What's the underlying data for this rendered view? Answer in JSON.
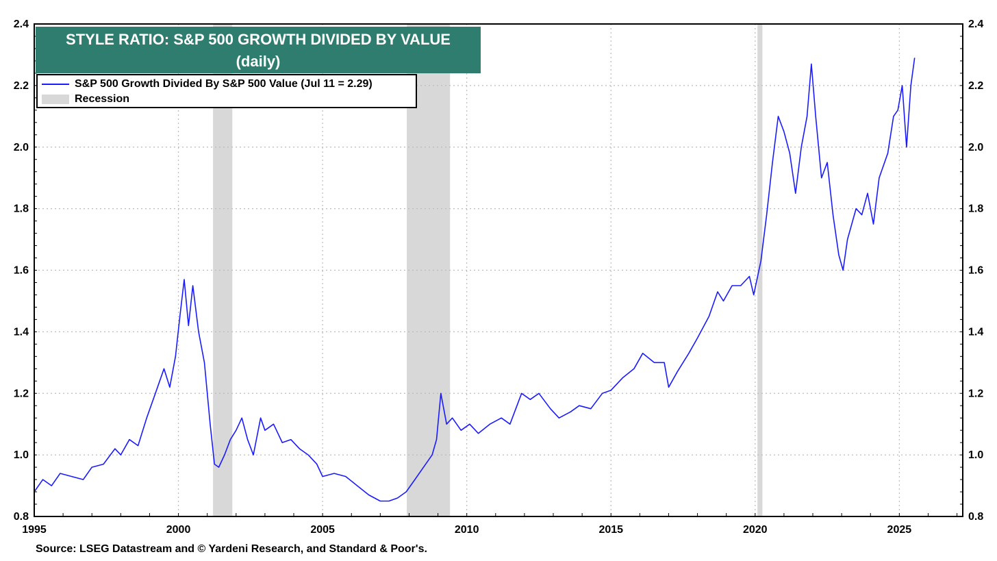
{
  "chart_data": {
    "type": "line",
    "title": "STYLE RATIO: S&P 500 GROWTH DIVIDED BY VALUE",
    "subtitle": "(daily)",
    "xlim": [
      1995,
      2027.2
    ],
    "ylim": [
      0.8,
      2.4
    ],
    "x_ticks": [
      "1995",
      "2000",
      "2005",
      "2010",
      "2015",
      "2020",
      "2025"
    ],
    "y_ticks": [
      "0.8",
      "1.0",
      "1.2",
      "1.4",
      "1.6",
      "1.8",
      "2.0",
      "2.2",
      "2.4"
    ],
    "grid": true,
    "legend_position": "top-left",
    "legend": {
      "series_label": "S&P 500 Growth Divided By S&P 500 Value (Jul 11 = 2.29)",
      "recession_label": "Recession"
    },
    "recessions": [
      [
        2001.2,
        2001.87
      ],
      [
        2007.92,
        2009.42
      ],
      [
        2020.08,
        2020.25
      ]
    ],
    "series": [
      {
        "name": "S&P 500 Growth Divided By S&P 500 Value (Jul 11 = 2.29)",
        "color": "#1a1aff",
        "points": [
          [
            1995.0,
            0.88
          ],
          [
            1995.3,
            0.92
          ],
          [
            1995.6,
            0.9
          ],
          [
            1995.9,
            0.94
          ],
          [
            1996.3,
            0.93
          ],
          [
            1996.7,
            0.92
          ],
          [
            1997.0,
            0.96
          ],
          [
            1997.4,
            0.97
          ],
          [
            1997.8,
            1.02
          ],
          [
            1998.0,
            1.0
          ],
          [
            1998.3,
            1.05
          ],
          [
            1998.6,
            1.03
          ],
          [
            1998.9,
            1.12
          ],
          [
            1999.2,
            1.2
          ],
          [
            1999.5,
            1.28
          ],
          [
            1999.7,
            1.22
          ],
          [
            1999.9,
            1.32
          ],
          [
            2000.05,
            1.45
          ],
          [
            2000.2,
            1.57
          ],
          [
            2000.35,
            1.42
          ],
          [
            2000.5,
            1.55
          ],
          [
            2000.7,
            1.4
          ],
          [
            2000.9,
            1.3
          ],
          [
            2001.1,
            1.1
          ],
          [
            2001.25,
            0.97
          ],
          [
            2001.4,
            0.96
          ],
          [
            2001.6,
            1.0
          ],
          [
            2001.8,
            1.05
          ],
          [
            2002.0,
            1.08
          ],
          [
            2002.2,
            1.12
          ],
          [
            2002.4,
            1.05
          ],
          [
            2002.6,
            1.0
          ],
          [
            2002.85,
            1.12
          ],
          [
            2003.0,
            1.08
          ],
          [
            2003.3,
            1.1
          ],
          [
            2003.6,
            1.04
          ],
          [
            2003.9,
            1.05
          ],
          [
            2004.2,
            1.02
          ],
          [
            2004.5,
            1.0
          ],
          [
            2004.8,
            0.97
          ],
          [
            2005.0,
            0.93
          ],
          [
            2005.4,
            0.94
          ],
          [
            2005.8,
            0.93
          ],
          [
            2006.2,
            0.9
          ],
          [
            2006.6,
            0.87
          ],
          [
            2007.0,
            0.85
          ],
          [
            2007.3,
            0.85
          ],
          [
            2007.6,
            0.86
          ],
          [
            2007.9,
            0.88
          ],
          [
            2008.2,
            0.92
          ],
          [
            2008.5,
            0.96
          ],
          [
            2008.8,
            1.0
          ],
          [
            2008.95,
            1.05
          ],
          [
            2009.1,
            1.2
          ],
          [
            2009.3,
            1.1
          ],
          [
            2009.5,
            1.12
          ],
          [
            2009.8,
            1.08
          ],
          [
            2010.1,
            1.1
          ],
          [
            2010.4,
            1.07
          ],
          [
            2010.8,
            1.1
          ],
          [
            2011.2,
            1.12
          ],
          [
            2011.5,
            1.1
          ],
          [
            2011.9,
            1.2
          ],
          [
            2012.2,
            1.18
          ],
          [
            2012.5,
            1.2
          ],
          [
            2012.9,
            1.15
          ],
          [
            2013.2,
            1.12
          ],
          [
            2013.6,
            1.14
          ],
          [
            2013.9,
            1.16
          ],
          [
            2014.3,
            1.15
          ],
          [
            2014.7,
            1.2
          ],
          [
            2015.0,
            1.21
          ],
          [
            2015.4,
            1.25
          ],
          [
            2015.8,
            1.28
          ],
          [
            2016.1,
            1.33
          ],
          [
            2016.5,
            1.3
          ],
          [
            2016.85,
            1.3
          ],
          [
            2017.0,
            1.22
          ],
          [
            2017.3,
            1.27
          ],
          [
            2017.7,
            1.33
          ],
          [
            2018.0,
            1.38
          ],
          [
            2018.4,
            1.45
          ],
          [
            2018.7,
            1.53
          ],
          [
            2018.9,
            1.5
          ],
          [
            2019.2,
            1.55
          ],
          [
            2019.5,
            1.55
          ],
          [
            2019.8,
            1.58
          ],
          [
            2019.95,
            1.52
          ],
          [
            2020.2,
            1.63
          ],
          [
            2020.4,
            1.78
          ],
          [
            2020.6,
            1.95
          ],
          [
            2020.8,
            2.1
          ],
          [
            2021.0,
            2.05
          ],
          [
            2021.2,
            1.98
          ],
          [
            2021.4,
            1.85
          ],
          [
            2021.6,
            2.0
          ],
          [
            2021.8,
            2.1
          ],
          [
            2021.95,
            2.27
          ],
          [
            2022.1,
            2.1
          ],
          [
            2022.3,
            1.9
          ],
          [
            2022.5,
            1.95
          ],
          [
            2022.7,
            1.78
          ],
          [
            2022.9,
            1.65
          ],
          [
            2023.05,
            1.6
          ],
          [
            2023.2,
            1.7
          ],
          [
            2023.5,
            1.8
          ],
          [
            2023.7,
            1.78
          ],
          [
            2023.9,
            1.85
          ],
          [
            2024.1,
            1.75
          ],
          [
            2024.3,
            1.9
          ],
          [
            2024.6,
            1.98
          ],
          [
            2024.8,
            2.1
          ],
          [
            2024.95,
            2.12
          ],
          [
            2025.1,
            2.2
          ],
          [
            2025.25,
            2.0
          ],
          [
            2025.4,
            2.2
          ],
          [
            2025.53,
            2.29
          ]
        ]
      }
    ]
  }
}
